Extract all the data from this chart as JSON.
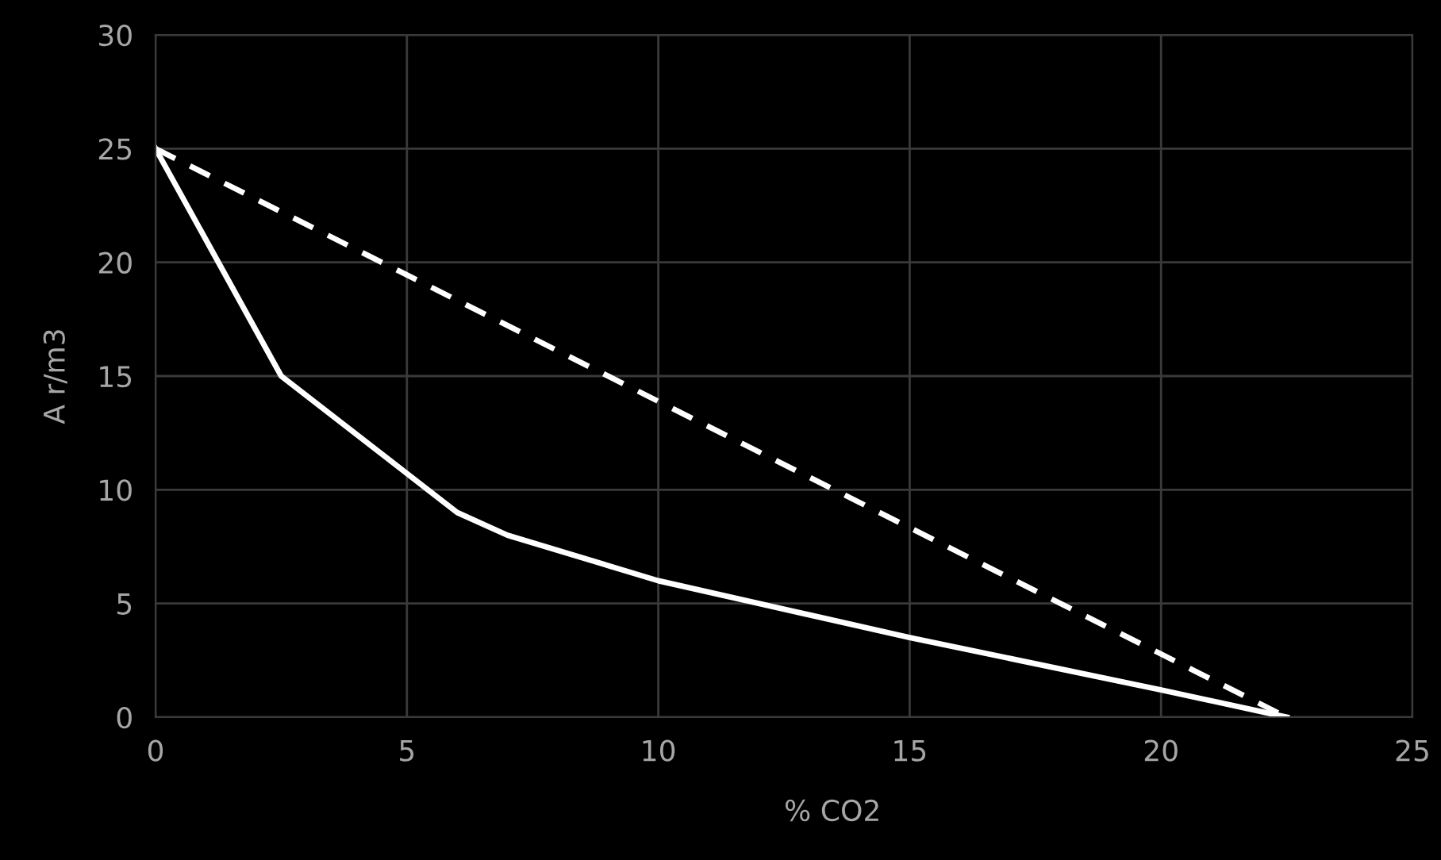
{
  "chart_data": {
    "type": "line",
    "xlabel": "% CO2",
    "ylabel": "A r/m3",
    "series": [
      {
        "color": "#ffffff",
        "line_style": "solid",
        "x": [
          0,
          2.5,
          6,
          7,
          10,
          15,
          20,
          22.5
        ],
        "values": [
          25,
          15,
          9,
          8,
          6,
          3.5,
          1.2,
          0
        ]
      },
      {
        "color": "#ffffff",
        "line_style": "dashed",
        "x": [
          0,
          22.5
        ],
        "values": [
          25,
          0
        ]
      }
    ],
    "xlim": [
      0,
      25
    ],
    "xticks": [
      0,
      5,
      10,
      15,
      20,
      25
    ],
    "ylim": [
      0,
      30
    ],
    "yticks": [
      0,
      5,
      10,
      15,
      20,
      25,
      30
    ],
    "grid": true,
    "marker": "none",
    "legend": false
  }
}
